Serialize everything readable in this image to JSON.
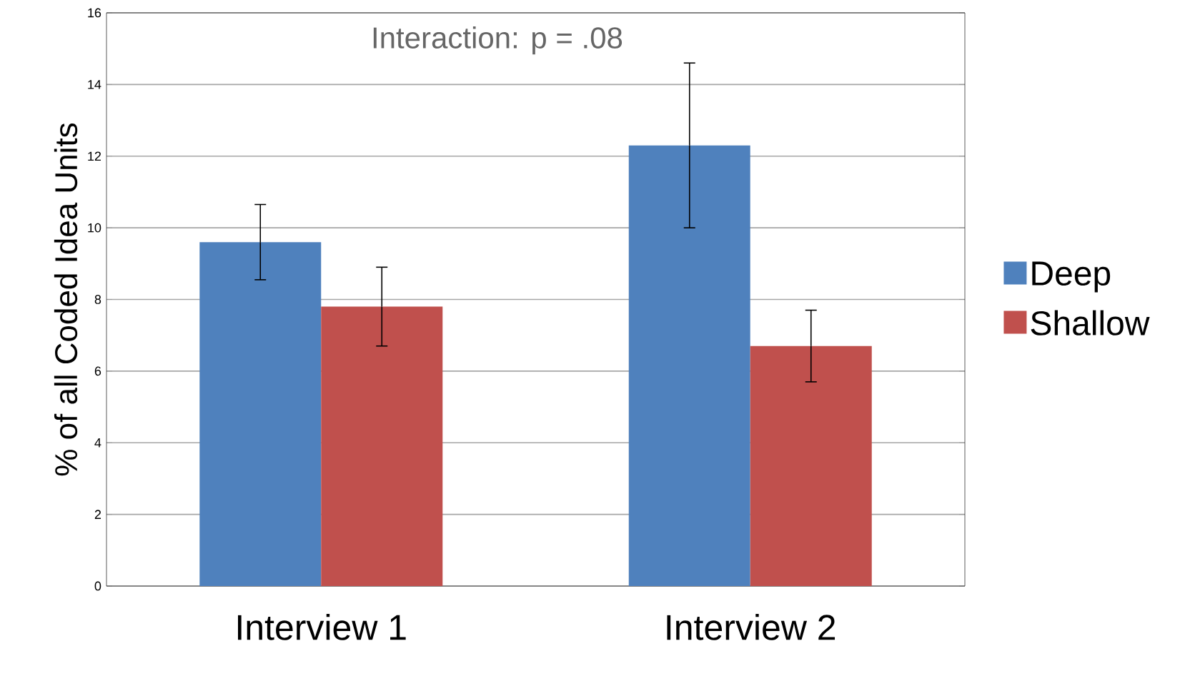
{
  "chart_data": {
    "type": "bar",
    "categories": [
      "Interview 1",
      "Interview 2"
    ],
    "series": [
      {
        "name": "Deep",
        "color": "#4f81bd",
        "values": [
          9.6,
          12.3
        ],
        "errors": [
          1.05,
          2.3
        ]
      },
      {
        "name": "Shallow",
        "color": "#c0504d",
        "values": [
          7.8,
          6.7
        ],
        "errors": [
          1.1,
          1.0
        ]
      }
    ],
    "ylabel": "% of all Coded Idea Units",
    "ylim": [
      0,
      16
    ],
    "yticks": [
      0,
      2,
      4,
      6,
      8,
      10,
      12,
      14,
      16
    ],
    "grid": "y",
    "legend": "right",
    "annotations": [
      "Interaction: p = .08"
    ]
  }
}
